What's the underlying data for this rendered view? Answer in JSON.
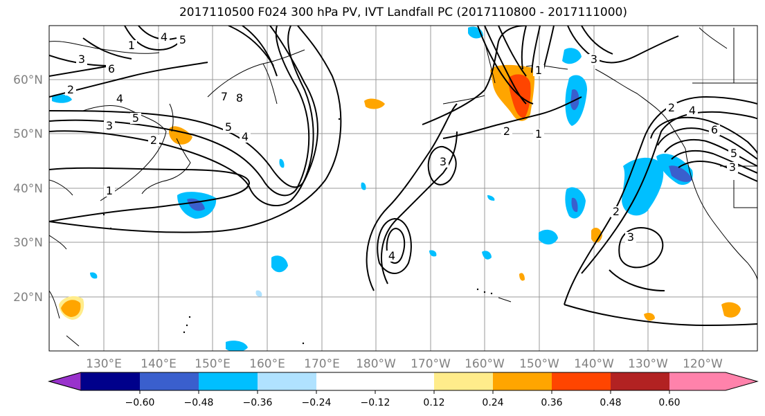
{
  "title": "2017110500 F024 300 hPa PV, IVT Landfall PC (2017110800 - 2017111000)",
  "map": {
    "lat_labels": [
      "60°N",
      "50°N",
      "40°N",
      "30°N",
      "20°N"
    ],
    "lon_labels": [
      "130°E",
      "140°E",
      "150°E",
      "160°E",
      "170°E",
      "180°W",
      "170°W",
      "160°W",
      "150°W",
      "140°W",
      "130°W",
      "120°W"
    ],
    "contour_labels": [
      "1",
      "3",
      "4",
      "5",
      "6",
      "2",
      "4",
      "5",
      "3",
      "2",
      "8",
      "7",
      "5",
      "4",
      "1",
      "3",
      "4",
      "2",
      "1",
      "3",
      "2",
      "4",
      "6",
      "5",
      "3",
      "2",
      "3",
      "1"
    ]
  },
  "colorbar": {
    "colors": [
      "#9932cc",
      "#00008b",
      "#3a5fcd",
      "#00bfff",
      "#b0e2ff",
      "#ffffff",
      "#ffffff",
      "#ffec8b",
      "#ffa500",
      "#ff4500",
      "#b22222",
      "#ff82ab"
    ],
    "tick_labels": [
      "−0.60",
      "−0.48",
      "−0.36",
      "−0.24",
      "−0.12",
      "0.12",
      "0.24",
      "0.36",
      "0.48",
      "0.60"
    ]
  }
}
